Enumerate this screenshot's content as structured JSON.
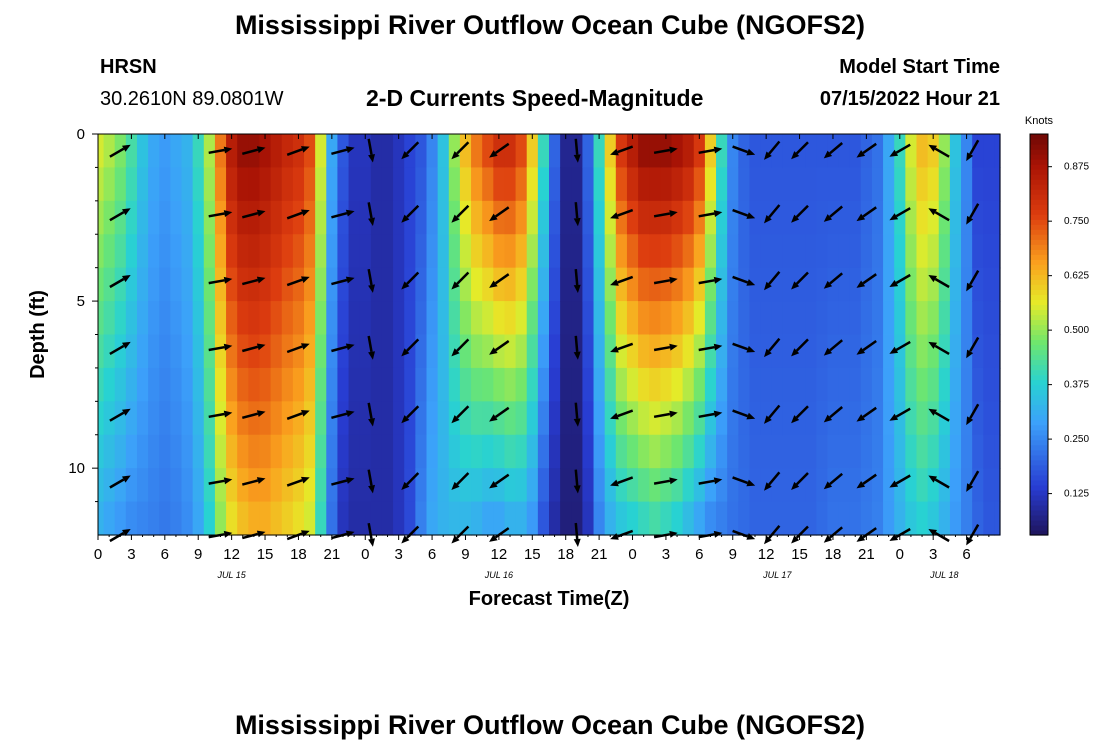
{
  "header": {
    "title": "Mississippi River Outflow Ocean Cube (NGOFS2)",
    "station": "HRSN",
    "location": "30.2610N  89.0801W",
    "subtitle": "2-D Currents Speed-Magnitude",
    "model_start_label": "Model Start Time",
    "model_start_value": "07/15/2022 Hour 21"
  },
  "footer": {
    "title": "Mississippi River Outflow Ocean Cube (NGOFS2)"
  },
  "chart_data": {
    "type": "heatmap",
    "title": "2-D Currents Speed-Magnitude",
    "xlabel": "Forecast Time(Z)",
    "ylabel": "Depth (ft)",
    "x_range_hours": [
      0,
      81
    ],
    "ylim": [
      0,
      12
    ],
    "x_ticks": [
      {
        "h": 0,
        "label": "0"
      },
      {
        "h": 3,
        "label": "3"
      },
      {
        "h": 6,
        "label": "6"
      },
      {
        "h": 9,
        "label": "9"
      },
      {
        "h": 12,
        "label": "12"
      },
      {
        "h": 15,
        "label": "15"
      },
      {
        "h": 18,
        "label": "18"
      },
      {
        "h": 21,
        "label": "21"
      },
      {
        "h": 24,
        "label": "0"
      },
      {
        "h": 27,
        "label": "3"
      },
      {
        "h": 30,
        "label": "6"
      },
      {
        "h": 33,
        "label": "9"
      },
      {
        "h": 36,
        "label": "12"
      },
      {
        "h": 39,
        "label": "15"
      },
      {
        "h": 42,
        "label": "18"
      },
      {
        "h": 45,
        "label": "21"
      },
      {
        "h": 48,
        "label": "0"
      },
      {
        "h": 51,
        "label": "3"
      },
      {
        "h": 54,
        "label": "6"
      },
      {
        "h": 57,
        "label": "9"
      },
      {
        "h": 60,
        "label": "12"
      },
      {
        "h": 63,
        "label": "15"
      },
      {
        "h": 66,
        "label": "18"
      },
      {
        "h": 69,
        "label": "21"
      },
      {
        "h": 72,
        "label": "0"
      },
      {
        "h": 75,
        "label": "3"
      },
      {
        "h": 78,
        "label": "6"
      }
    ],
    "date_labels": [
      {
        "h": 12,
        "label": "JUL 15"
      },
      {
        "h": 36,
        "label": "JUL 16"
      },
      {
        "h": 61,
        "label": "JUL 17"
      },
      {
        "h": 76,
        "label": "JUL 18"
      }
    ],
    "y_ticks": [
      {
        "v": 0,
        "label": "0"
      },
      {
        "v": 5,
        "label": "5"
      },
      {
        "v": 10,
        "label": "10"
      }
    ],
    "colorbar": {
      "label": "Knots",
      "min": 0.03,
      "max": 0.95,
      "ticks": [
        0.125,
        0.25,
        0.375,
        0.5,
        0.625,
        0.75,
        0.875
      ],
      "tick_labels": [
        "0.125",
        "0.250",
        "0.375",
        "0.500",
        "0.625",
        "0.750",
        "0.875"
      ]
    },
    "speed_profile": {
      "hours": [
        0,
        1,
        2,
        3,
        4,
        5,
        6,
        7,
        8,
        9,
        10,
        11,
        12,
        13,
        14,
        15,
        16,
        17,
        18,
        19,
        20,
        21,
        22,
        23,
        24,
        25,
        26,
        27,
        28,
        29,
        30,
        31,
        32,
        33,
        34,
        35,
        36,
        37,
        38,
        39,
        40,
        41,
        42,
        43,
        44,
        45,
        46,
        47,
        48,
        49,
        50,
        51,
        52,
        53,
        54,
        55,
        56,
        57,
        58,
        59,
        60,
        61,
        62,
        63,
        64,
        65,
        66,
        67,
        68,
        69,
        70,
        71,
        72,
        73,
        74,
        75,
        76,
        77,
        78,
        79,
        80,
        81
      ],
      "surface": [
        0.55,
        0.52,
        0.48,
        0.42,
        0.35,
        0.3,
        0.28,
        0.3,
        0.32,
        0.4,
        0.52,
        0.7,
        0.85,
        0.9,
        0.9,
        0.88,
        0.85,
        0.82,
        0.8,
        0.75,
        0.55,
        0.3,
        0.18,
        0.12,
        0.12,
        0.1,
        0.1,
        0.12,
        0.15,
        0.18,
        0.25,
        0.35,
        0.5,
        0.62,
        0.7,
        0.75,
        0.8,
        0.8,
        0.75,
        0.6,
        0.4,
        0.2,
        0.08,
        0.08,
        0.2,
        0.4,
        0.6,
        0.78,
        0.85,
        0.9,
        0.9,
        0.9,
        0.88,
        0.85,
        0.78,
        0.6,
        0.4,
        0.25,
        0.2,
        0.18,
        0.18,
        0.18,
        0.18,
        0.18,
        0.18,
        0.18,
        0.18,
        0.18,
        0.18,
        0.2,
        0.22,
        0.3,
        0.4,
        0.55,
        0.62,
        0.6,
        0.5,
        0.35,
        0.25,
        0.15,
        0.15,
        0.15
      ],
      "bottom": [
        0.32,
        0.3,
        0.28,
        0.26,
        0.25,
        0.24,
        0.23,
        0.24,
        0.26,
        0.3,
        0.38,
        0.5,
        0.58,
        0.62,
        0.64,
        0.64,
        0.62,
        0.6,
        0.58,
        0.55,
        0.4,
        0.22,
        0.12,
        0.1,
        0.1,
        0.1,
        0.1,
        0.12,
        0.16,
        0.24,
        0.3,
        0.32,
        0.33,
        0.33,
        0.32,
        0.3,
        0.3,
        0.32,
        0.32,
        0.28,
        0.18,
        0.1,
        0.06,
        0.06,
        0.12,
        0.25,
        0.32,
        0.36,
        0.38,
        0.4,
        0.42,
        0.4,
        0.38,
        0.34,
        0.3,
        0.26,
        0.24,
        0.22,
        0.21,
        0.2,
        0.2,
        0.2,
        0.2,
        0.2,
        0.2,
        0.21,
        0.22,
        0.22,
        0.22,
        0.23,
        0.24,
        0.28,
        0.32,
        0.36,
        0.38,
        0.36,
        0.32,
        0.28,
        0.24,
        0.2,
        0.18,
        0.18
      ]
    },
    "vectors": {
      "hours": [
        2,
        11,
        14,
        18,
        22,
        24.5,
        28,
        32.5,
        36,
        43,
        47,
        51,
        55,
        58,
        60.5,
        63,
        66,
        69,
        72,
        75.5,
        78.5
      ],
      "depths_ft": [
        0.5,
        2.4,
        4.4,
        6.4,
        8.4,
        10.4,
        12.0
      ],
      "direction_by_column_deg": [
        60,
        80,
        75,
        70,
        75,
        170,
        225,
        225,
        235,
        175,
        250,
        80,
        80,
        110,
        220,
        225,
        230,
        235,
        240,
        300,
        210
      ]
    }
  }
}
